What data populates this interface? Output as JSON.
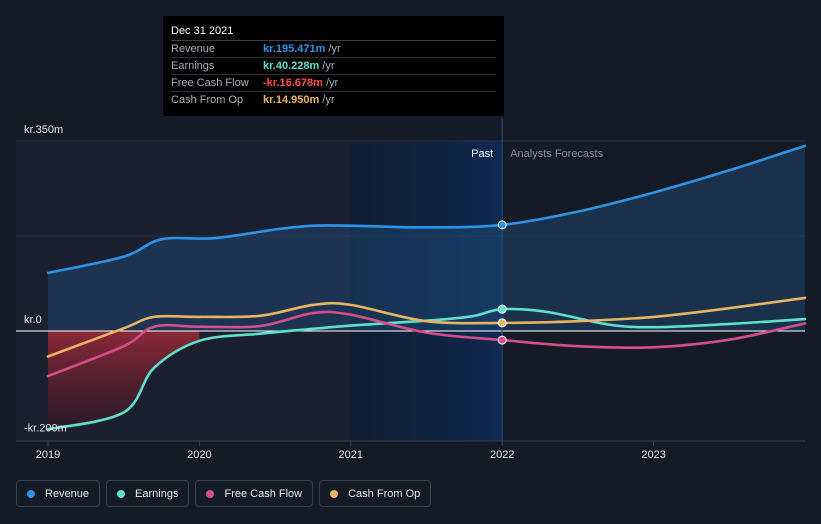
{
  "colors": {
    "revenue": "#2e93e6",
    "earnings": "#5fe0c9",
    "fcf": "#d44d8c",
    "cfo": "#e8b464",
    "background": "#151b26",
    "past_band": "#0f2747"
  },
  "tooltip": {
    "date": "Dec 31 2021",
    "rows": [
      {
        "label": "Revenue",
        "value": "kr.195.471m",
        "unit": "/yr",
        "color": "#2e93e6"
      },
      {
        "label": "Earnings",
        "value": "kr.40.228m",
        "unit": "/yr",
        "color": "#5fe0c9"
      },
      {
        "label": "Free Cash Flow",
        "value": "-kr.16.678m",
        "unit": "/yr",
        "color": "#ff4d4d"
      },
      {
        "label": "Cash From Op",
        "value": "kr.14.950m",
        "unit": "/yr",
        "color": "#e8b464"
      }
    ]
  },
  "chart_data": {
    "type": "line",
    "y_tick_labels": [
      "kr.350m",
      "kr.0",
      "-kr.200m"
    ],
    "ylim": [
      -200,
      350
    ],
    "xlim": [
      2019,
      2024
    ],
    "x_ticks": [
      2019,
      2020,
      2021,
      2022,
      2023
    ],
    "x_tick_labels": [
      "2019",
      "2020",
      "2021",
      "2022",
      "2023"
    ],
    "past_label": "Past",
    "forecast_label": "Analysts Forecasts",
    "divider_x": 2022,
    "past_band": [
      2021,
      2022
    ],
    "series": [
      {
        "name": "Revenue",
        "color": "#2e93e6",
        "fill": true,
        "points": [
          [
            2019,
            107
          ],
          [
            2019.5,
            137
          ],
          [
            2019.75,
            169
          ],
          [
            2020.1,
            171
          ],
          [
            2020.5,
            187
          ],
          [
            2020.75,
            194
          ],
          [
            2021,
            194
          ],
          [
            2021.5,
            191
          ],
          [
            2022,
            195.5
          ],
          [
            2022.5,
            220
          ],
          [
            2023,
            255
          ],
          [
            2023.5,
            296
          ],
          [
            2024,
            341
          ]
        ]
      },
      {
        "name": "Earnings",
        "color": "#5fe0c9",
        "points": [
          [
            2019,
            -181
          ],
          [
            2019.5,
            -150
          ],
          [
            2019.7,
            -68
          ],
          [
            2020,
            -18
          ],
          [
            2020.4,
            -5
          ],
          [
            2020.75,
            4
          ],
          [
            2021,
            10
          ],
          [
            2021.5,
            19
          ],
          [
            2021.8,
            27
          ],
          [
            2022,
            40.2
          ],
          [
            2022.3,
            35
          ],
          [
            2022.7,
            12
          ],
          [
            2023,
            7
          ],
          [
            2023.5,
            13
          ],
          [
            2024,
            22
          ]
        ]
      },
      {
        "name": "Free Cash Flow",
        "color": "#d44d8c",
        "points": [
          [
            2019,
            -83
          ],
          [
            2019.5,
            -28
          ],
          [
            2019.7,
            8
          ],
          [
            2020,
            8
          ],
          [
            2020.4,
            9
          ],
          [
            2020.75,
            33
          ],
          [
            2021,
            30
          ],
          [
            2021.5,
            -3
          ],
          [
            2022,
            -16.7
          ],
          [
            2022.5,
            -28
          ],
          [
            2023,
            -30
          ],
          [
            2023.5,
            -16
          ],
          [
            2024,
            14
          ]
        ]
      },
      {
        "name": "Cash From Op",
        "color": "#e8b464",
        "points": [
          [
            2019,
            -47
          ],
          [
            2019.5,
            5
          ],
          [
            2019.7,
            26
          ],
          [
            2020,
            26
          ],
          [
            2020.4,
            28
          ],
          [
            2020.75,
            48
          ],
          [
            2021,
            48
          ],
          [
            2021.5,
            18
          ],
          [
            2022,
            15
          ],
          [
            2022.5,
            18
          ],
          [
            2023,
            26
          ],
          [
            2023.5,
            42
          ],
          [
            2024,
            61
          ]
        ]
      }
    ],
    "legend": [
      "Revenue",
      "Earnings",
      "Free Cash Flow",
      "Cash From Op"
    ]
  }
}
